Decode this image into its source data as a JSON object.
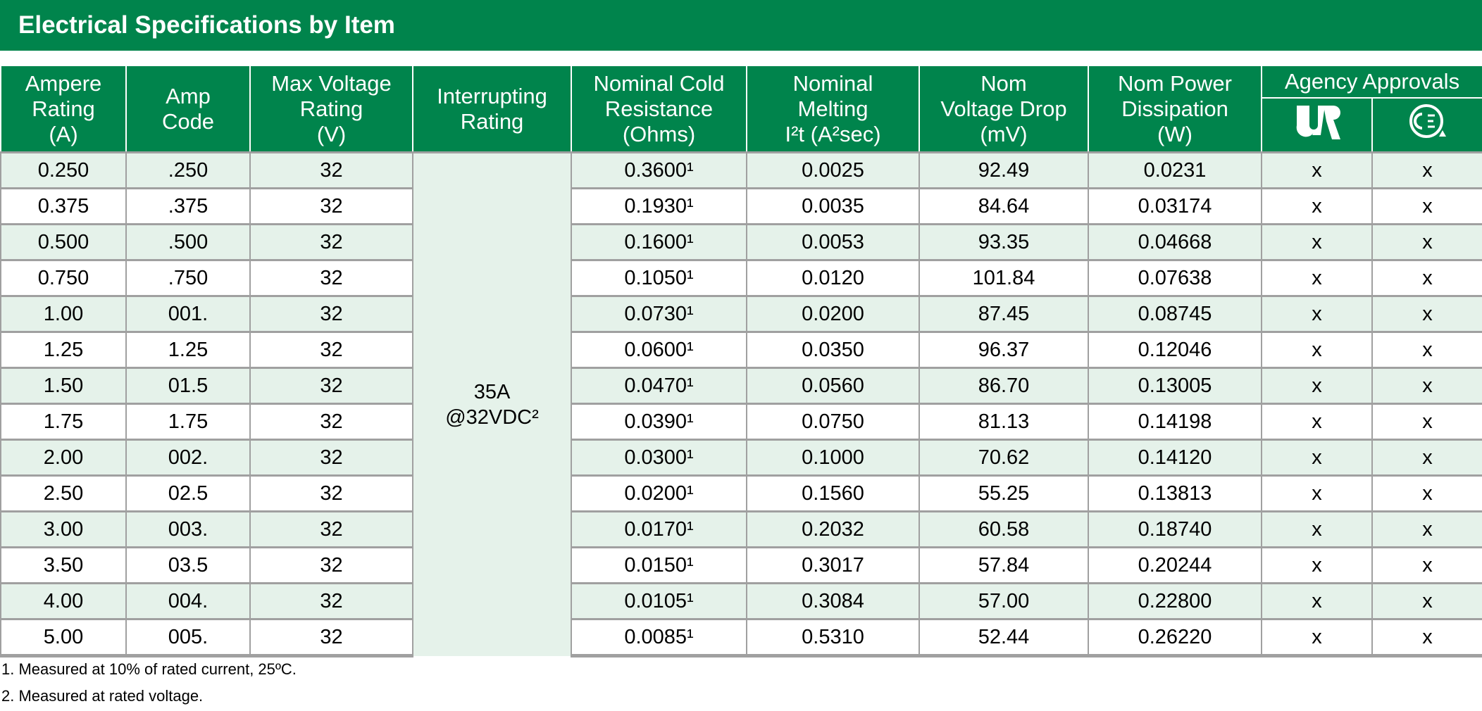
{
  "title": "Electrical Specifications by Item",
  "table": {
    "headers": [
      [
        "Ampere",
        "Rating",
        "(A)"
      ],
      [
        "Amp",
        "Code"
      ],
      [
        "Max Voltage",
        "Rating",
        "(V)"
      ],
      [
        "Interrupting",
        "Rating"
      ],
      [
        "Nominal Cold",
        "Resistance",
        "(Ohms)"
      ],
      [
        "Nominal",
        "Melting",
        "I²t (A²sec)"
      ],
      [
        "Nom",
        "Voltage Drop",
        "(mV)"
      ],
      [
        "Nom Power",
        "Dissipation",
        "(W)"
      ]
    ],
    "group_header": "Agency Approvals",
    "interrupting_rating": [
      "35A",
      "@32VDC²"
    ],
    "rows": [
      [
        "0.250",
        ".250",
        "32",
        "0.3600¹",
        "0.0025",
        "92.49",
        "0.0231",
        "x",
        "x"
      ],
      [
        "0.375",
        ".375",
        "32",
        "0.1930¹",
        "0.0035",
        "84.64",
        "0.03174",
        "x",
        "x"
      ],
      [
        "0.500",
        ".500",
        "32",
        "0.1600¹",
        "0.0053",
        "93.35",
        "0.04668",
        "x",
        "x"
      ],
      [
        "0.750",
        ".750",
        "32",
        "0.1050¹",
        "0.0120",
        "101.84",
        "0.07638",
        "x",
        "x"
      ],
      [
        "1.00",
        "001.",
        "32",
        "0.0730¹",
        "0.0200",
        "87.45",
        "0.08745",
        "x",
        "x"
      ],
      [
        "1.25",
        "1.25",
        "32",
        "0.0600¹",
        "0.0350",
        "96.37",
        "0.12046",
        "x",
        "x"
      ],
      [
        "1.50",
        "01.5",
        "32",
        "0.0470¹",
        "0.0560",
        "86.70",
        "0.13005",
        "x",
        "x"
      ],
      [
        "1.75",
        "1.75",
        "32",
        "0.0390¹",
        "0.0750",
        "81.13",
        "0.14198",
        "x",
        "x"
      ],
      [
        "2.00",
        "002.",
        "32",
        "0.0300¹",
        "0.1000",
        "70.62",
        "0.14120",
        "x",
        "x"
      ],
      [
        "2.50",
        "02.5",
        "32",
        "0.0200¹",
        "0.1560",
        "55.25",
        "0.13813",
        "x",
        "x"
      ],
      [
        "3.00",
        "003.",
        "32",
        "0.0170¹",
        "0.2032",
        "60.58",
        "0.18740",
        "x",
        "x"
      ],
      [
        "3.50",
        "03.5",
        "32",
        "0.0150¹",
        "0.3017",
        "57.84",
        "0.20244",
        "x",
        "x"
      ],
      [
        "4.00",
        "004.",
        "32",
        "0.0105¹",
        "0.3084",
        "57.00",
        "0.22800",
        "x",
        "x"
      ],
      [
        "5.00",
        "005.",
        "32",
        "0.0085¹",
        "0.5310",
        "52.44",
        "0.26220",
        "x",
        "x"
      ]
    ]
  },
  "footnotes": [
    "1. Measured at 10% of rated current, 25ºC.",
    "2. Measured at rated voltage."
  ]
}
